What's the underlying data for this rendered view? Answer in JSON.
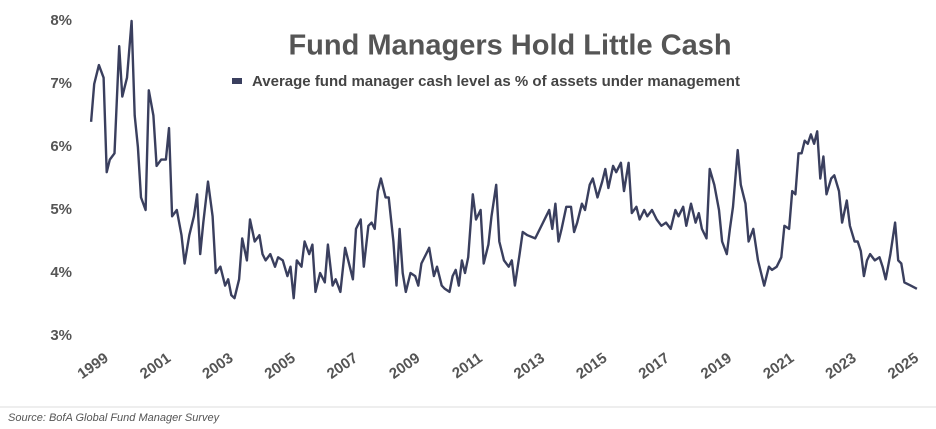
{
  "chart_data": {
    "type": "line",
    "title": "Fund Managers Hold Little Cash",
    "source": "Source: BofA Global Fund Manager Survey",
    "xlim": [
      1998.9,
      2025.6
    ],
    "xticks": [
      1999,
      2001,
      2003,
      2005,
      2007,
      2009,
      2011,
      2013,
      2015,
      2017,
      2019,
      2021,
      2023,
      2025
    ],
    "ylim": [
      3,
      8
    ],
    "yticks": [
      {
        "value": 3,
        "label": "3%"
      },
      {
        "value": 4,
        "label": "4%"
      },
      {
        "value": 5,
        "label": "5%"
      },
      {
        "value": 6,
        "label": "6%"
      },
      {
        "value": 7,
        "label": "7%"
      },
      {
        "value": 8,
        "label": "8%"
      }
    ],
    "grid": false,
    "series": [
      {
        "name": "Average fund manager cash level as % of assets under management",
        "color": "#3a3f5e",
        "x": [
          1999.0,
          1999.1,
          1999.25,
          1999.4,
          1999.5,
          1999.6,
          1999.75,
          1999.9,
          2000.0,
          2000.15,
          2000.3,
          2000.4,
          2000.5,
          2000.6,
          2000.75,
          2000.85,
          2001.0,
          2001.1,
          2001.25,
          2001.4,
          2001.5,
          2001.6,
          2001.75,
          2001.9,
          2002.0,
          2002.15,
          2002.3,
          2002.4,
          2002.5,
          2002.6,
          2002.75,
          2002.9,
          2003.0,
          2003.15,
          2003.3,
          2003.4,
          2003.5,
          2003.6,
          2003.75,
          2003.85,
          2004.0,
          2004.1,
          2004.25,
          2004.4,
          2004.5,
          2004.6,
          2004.75,
          2004.9,
          2005.0,
          2005.15,
          2005.3,
          2005.4,
          2005.5,
          2005.6,
          2005.75,
          2005.85,
          2006.0,
          2006.1,
          2006.2,
          2006.35,
          2006.5,
          2006.6,
          2006.75,
          2006.85,
          2007.0,
          2007.15,
          2007.3,
          2007.4,
          2007.5,
          2007.65,
          2007.75,
          2007.9,
          2008.0,
          2008.1,
          2008.2,
          2008.3,
          2008.45,
          2008.55,
          2008.7,
          2008.8,
          2008.9,
          2009.0,
          2009.1,
          2009.25,
          2009.4,
          2009.5,
          2009.6,
          2009.75,
          2009.85,
          2010.0,
          2010.1,
          2010.25,
          2010.35,
          2010.5,
          2010.6,
          2010.7,
          2010.8,
          2010.9,
          2011.0,
          2011.1,
          2011.25,
          2011.35,
          2011.5,
          2011.6,
          2011.75,
          2011.85,
          2012.0,
          2012.1,
          2012.25,
          2012.4,
          2012.5,
          2012.6,
          2012.75,
          2012.85,
          2013.0,
          2013.25,
          2013.5,
          2013.6,
          2013.7,
          2013.8,
          2013.9,
          2014.0,
          2014.1,
          2014.25,
          2014.4,
          2014.5,
          2014.6,
          2014.75,
          2014.85,
          2015.0,
          2015.1,
          2015.25,
          2015.4,
          2015.5,
          2015.6,
          2015.75,
          2015.85,
          2016.0,
          2016.1,
          2016.25,
          2016.35,
          2016.5,
          2016.6,
          2016.75,
          2016.85,
          2017.0,
          2017.15,
          2017.3,
          2017.45,
          2017.6,
          2017.75,
          2017.85,
          2018.0,
          2018.1,
          2018.25,
          2018.4,
          2018.5,
          2018.6,
          2018.75,
          2018.85,
          2019.0,
          2019.15,
          2019.25,
          2019.4,
          2019.5,
          2019.6,
          2019.75,
          2019.85,
          2020.0,
          2020.1,
          2020.25,
          2020.4,
          2020.5,
          2020.6,
          2020.75,
          2020.85,
          2021.0,
          2021.15,
          2021.25,
          2021.4,
          2021.5,
          2021.6,
          2021.7,
          2021.8,
          2021.9,
          2022.0,
          2022.1,
          2022.2,
          2022.3,
          2022.4,
          2022.5,
          2022.6,
          2022.75,
          2022.85,
          2023.0,
          2023.1,
          2023.25,
          2023.35,
          2023.5,
          2023.6,
          2023.7,
          2023.8,
          2023.9,
          2024.0,
          2024.15,
          2024.3,
          2024.4,
          2024.5,
          2024.65,
          2024.8,
          2024.9,
          2025.0,
          2025.1,
          2025.3,
          2025.5
        ],
        "values": [
          6.4,
          7.0,
          7.3,
          7.1,
          5.6,
          5.8,
          5.9,
          7.6,
          6.8,
          7.1,
          8.0,
          6.5,
          6.0,
          5.2,
          5.0,
          6.9,
          6.5,
          5.7,
          5.8,
          5.8,
          6.3,
          4.9,
          5.0,
          4.6,
          4.15,
          4.6,
          4.9,
          5.25,
          4.3,
          4.8,
          5.45,
          4.9,
          4.0,
          4.1,
          3.8,
          3.9,
          3.65,
          3.6,
          3.9,
          4.55,
          4.2,
          4.85,
          4.5,
          4.6,
          4.3,
          4.2,
          4.3,
          4.1,
          4.25,
          4.2,
          3.95,
          4.1,
          3.6,
          4.2,
          4.1,
          4.5,
          4.3,
          4.45,
          3.7,
          4.0,
          3.85,
          4.45,
          3.8,
          3.9,
          3.7,
          4.4,
          4.1,
          3.9,
          4.7,
          4.85,
          4.1,
          4.75,
          4.8,
          4.7,
          5.3,
          5.5,
          5.2,
          5.2,
          4.5,
          3.8,
          4.7,
          4.0,
          3.7,
          4.0,
          3.95,
          3.8,
          4.15,
          4.3,
          4.4,
          3.95,
          4.1,
          3.8,
          3.75,
          3.7,
          3.95,
          4.05,
          3.8,
          4.2,
          4.0,
          4.25,
          5.25,
          4.85,
          5.0,
          4.15,
          4.45,
          4.9,
          5.4,
          4.5,
          4.2,
          4.1,
          4.2,
          3.8,
          4.3,
          4.65,
          4.6,
          4.55,
          4.8,
          4.9,
          5.0,
          4.7,
          5.1,
          4.5,
          4.7,
          5.05,
          5.05,
          4.65,
          4.8,
          5.1,
          5.0,
          5.4,
          5.5,
          5.2,
          5.45,
          5.65,
          5.35,
          5.7,
          5.6,
          5.75,
          5.3,
          5.75,
          4.95,
          5.05,
          4.85,
          5.0,
          4.9,
          5.0,
          4.85,
          4.75,
          4.8,
          4.7,
          5.0,
          4.9,
          5.05,
          4.75,
          5.1,
          4.8,
          4.95,
          4.7,
          4.55,
          5.65,
          5.4,
          5.0,
          4.5,
          4.3,
          4.7,
          5.05,
          5.95,
          5.4,
          5.1,
          4.5,
          4.7,
          4.2,
          4.0,
          3.8,
          4.1,
          4.05,
          4.1,
          4.25,
          4.75,
          4.7,
          5.3,
          5.25,
          5.9,
          5.9,
          6.1,
          6.05,
          6.2,
          6.05,
          6.25,
          5.5,
          5.85,
          5.25,
          5.5,
          5.55,
          5.3,
          4.8,
          5.15,
          4.75,
          4.5,
          4.5,
          4.35,
          3.95,
          4.2,
          4.3,
          4.2,
          4.25,
          4.1,
          3.9,
          4.3,
          4.8,
          4.2,
          4.15,
          3.85,
          3.8,
          3.75
        ]
      }
    ]
  }
}
